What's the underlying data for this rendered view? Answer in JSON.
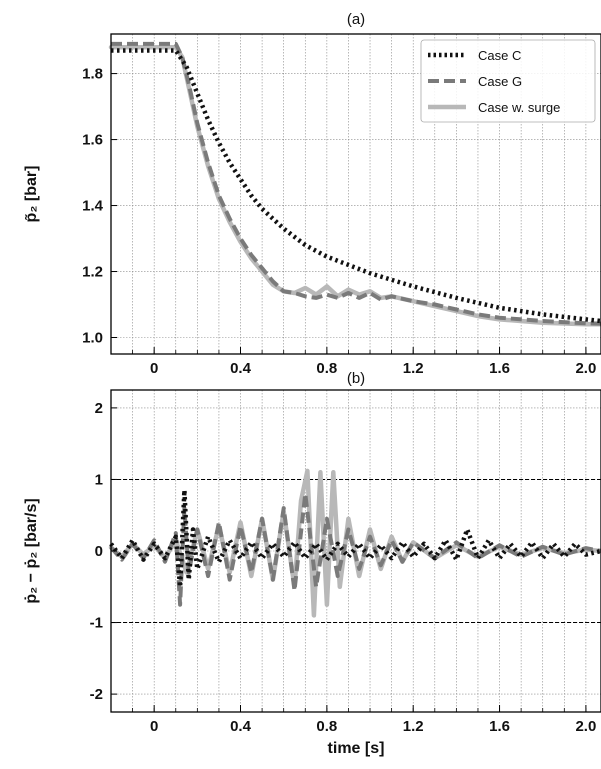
{
  "chart_data": [
    {
      "type": "line",
      "panel_label": "(a)",
      "ylabel": "p̃₂ [bar]",
      "xlim": [
        -0.2,
        2.07
      ],
      "ylim": [
        0.95,
        1.92
      ],
      "x_ticks": [
        0,
        0.4,
        0.8,
        1.2,
        1.6,
        2.0
      ],
      "x_tick_labels": [
        "0",
        "0.4",
        "0.8",
        "1.2",
        "1.6",
        "2.0"
      ],
      "y_ticks": [
        1.0,
        1.2,
        1.4,
        1.6,
        1.8
      ],
      "y_tick_labels": [
        "1.0",
        "1.2",
        "1.4",
        "1.6",
        "1.8"
      ],
      "x_grid_step": 0.1,
      "grid": true,
      "legend_position": "top-right",
      "series": [
        {
          "name": "Case C",
          "color": "#111111",
          "style": "dotted",
          "x": [
            -0.2,
            0.1,
            0.15,
            0.2,
            0.25,
            0.3,
            0.35,
            0.4,
            0.45,
            0.5,
            0.6,
            0.7,
            0.8,
            0.9,
            1.0,
            1.2,
            1.4,
            1.6,
            1.8,
            2.0,
            2.07
          ],
          "y": [
            1.87,
            1.87,
            1.82,
            1.74,
            1.66,
            1.59,
            1.53,
            1.48,
            1.43,
            1.39,
            1.33,
            1.28,
            1.245,
            1.22,
            1.195,
            1.155,
            1.12,
            1.09,
            1.07,
            1.055,
            1.05
          ]
        },
        {
          "name": "Case G",
          "color": "#7a7a7a",
          "style": "dashed",
          "x": [
            -0.2,
            0.1,
            0.13,
            0.16,
            0.2,
            0.25,
            0.3,
            0.35,
            0.4,
            0.45,
            0.5,
            0.55,
            0.6,
            0.65,
            0.7,
            0.75,
            0.8,
            0.85,
            0.9,
            0.95,
            1.0,
            1.05,
            1.1,
            1.2,
            1.3,
            1.4,
            1.5,
            1.6,
            1.8,
            2.0,
            2.07
          ],
          "y": [
            1.89,
            1.89,
            1.85,
            1.77,
            1.65,
            1.53,
            1.43,
            1.36,
            1.3,
            1.25,
            1.21,
            1.17,
            1.14,
            1.135,
            1.125,
            1.12,
            1.13,
            1.12,
            1.135,
            1.12,
            1.135,
            1.115,
            1.125,
            1.11,
            1.1,
            1.085,
            1.07,
            1.06,
            1.05,
            1.043,
            1.042
          ]
        },
        {
          "name": "Case w. surge",
          "color": "#b8b8b8",
          "style": "solid",
          "x": [
            -0.2,
            0.1,
            0.13,
            0.16,
            0.2,
            0.25,
            0.3,
            0.35,
            0.4,
            0.45,
            0.5,
            0.55,
            0.6,
            0.65,
            0.7,
            0.75,
            0.8,
            0.85,
            0.9,
            0.95,
            1.0,
            1.05,
            1.1,
            1.2,
            1.3,
            1.4,
            1.5,
            1.6,
            1.8,
            2.0,
            2.07
          ],
          "y": [
            1.88,
            1.88,
            1.85,
            1.76,
            1.64,
            1.52,
            1.42,
            1.35,
            1.29,
            1.24,
            1.2,
            1.16,
            1.14,
            1.135,
            1.15,
            1.13,
            1.155,
            1.125,
            1.145,
            1.13,
            1.14,
            1.12,
            1.125,
            1.11,
            1.095,
            1.08,
            1.065,
            1.055,
            1.045,
            1.04,
            1.04
          ]
        }
      ]
    },
    {
      "type": "line",
      "panel_label": "(b)",
      "xlabel": "time [s]",
      "ylabel": "ṗ₂ − ṗ₂ [bar/s]",
      "xlim": [
        -0.2,
        2.07
      ],
      "ylim": [
        -2.25,
        2.25
      ],
      "x_ticks": [
        0,
        0.4,
        0.8,
        1.2,
        1.6,
        2.0
      ],
      "x_tick_labels": [
        "0",
        "0.4",
        "0.8",
        "1.2",
        "1.6",
        "2.0"
      ],
      "y_ticks": [
        -2,
        -1,
        0,
        1,
        2
      ],
      "y_tick_labels": [
        "-2",
        "-1",
        "0",
        "1",
        "2"
      ],
      "x_grid_step": 0.1,
      "grid": true,
      "reference_lines_y": [
        1,
        -1
      ],
      "series": [
        {
          "name": "Case C",
          "color": "#111111",
          "style": "dotted",
          "x": [
            -0.2,
            -0.15,
            -0.1,
            -0.05,
            0,
            0.05,
            0.1,
            0.12,
            0.14,
            0.16,
            0.18,
            0.2,
            0.25,
            0.3,
            0.35,
            0.4,
            0.45,
            0.5,
            0.55,
            0.6,
            0.65,
            0.7,
            0.75,
            0.8,
            0.85,
            0.9,
            0.95,
            1.0,
            1.05,
            1.1,
            1.15,
            1.2,
            1.25,
            1.3,
            1.35,
            1.4,
            1.45,
            1.5,
            1.55,
            1.6,
            1.65,
            1.7,
            1.75,
            1.8,
            1.85,
            1.9,
            1.95,
            2.0,
            2.07
          ],
          "y": [
            0.1,
            -0.1,
            0.15,
            -0.12,
            0.1,
            -0.1,
            0.2,
            -0.5,
            0.85,
            -0.4,
            0.3,
            -0.25,
            0.2,
            -0.15,
            0.15,
            -0.1,
            0.12,
            -0.1,
            0.1,
            -0.08,
            0.12,
            -0.1,
            0.1,
            -0.12,
            0.1,
            -0.08,
            0.1,
            -0.1,
            0.08,
            -0.1,
            0.12,
            -0.08,
            0.1,
            -0.1,
            0.15,
            -0.12,
            0.3,
            -0.1,
            0.15,
            -0.1,
            0.1,
            -0.08,
            0.12,
            -0.1,
            0.1,
            -0.08,
            0.1,
            -0.05,
            0.0
          ]
        },
        {
          "name": "Case G",
          "color": "#7a7a7a",
          "style": "dashed",
          "x": [
            -0.2,
            -0.15,
            -0.1,
            -0.05,
            0,
            0.05,
            0.1,
            0.12,
            0.14,
            0.16,
            0.2,
            0.25,
            0.3,
            0.35,
            0.4,
            0.45,
            0.5,
            0.55,
            0.6,
            0.65,
            0.7,
            0.75,
            0.8,
            0.85,
            0.9,
            0.95,
            1.0,
            1.05,
            1.1,
            1.15,
            1.2,
            1.3,
            1.4,
            1.5,
            1.6,
            1.7,
            1.8,
            1.9,
            2.0,
            2.07
          ],
          "y": [
            0.05,
            -0.12,
            0.1,
            -0.1,
            0.15,
            -0.15,
            0.25,
            -0.75,
            0.6,
            -0.3,
            0.3,
            -0.35,
            0.4,
            -0.4,
            0.35,
            -0.3,
            0.45,
            -0.4,
            0.6,
            -0.55,
            0.8,
            -0.5,
            0.45,
            -0.35,
            0.3,
            -0.25,
            0.2,
            -0.2,
            0.15,
            -0.15,
            0.12,
            -0.1,
            0.12,
            -0.1,
            0.08,
            -0.08,
            0.06,
            -0.05,
            0.04,
            0.0
          ]
        },
        {
          "name": "Case w. surge",
          "color": "#b8b8b8",
          "style": "solid",
          "x": [
            -0.2,
            -0.15,
            -0.1,
            -0.05,
            0,
            0.05,
            0.1,
            0.15,
            0.2,
            0.25,
            0.3,
            0.35,
            0.4,
            0.45,
            0.5,
            0.55,
            0.6,
            0.65,
            0.68,
            0.71,
            0.74,
            0.77,
            0.8,
            0.83,
            0.86,
            0.9,
            0.95,
            1.0,
            1.05,
            1.1,
            1.15,
            1.2,
            1.3,
            1.4,
            1.5,
            1.6,
            1.7,
            1.8,
            1.9,
            2.0,
            2.07
          ],
          "y": [
            0.05,
            -0.08,
            0.1,
            -0.05,
            0.08,
            -0.1,
            0.15,
            -0.3,
            0.3,
            -0.25,
            0.35,
            -0.3,
            0.4,
            -0.35,
            0.45,
            -0.4,
            0.55,
            -0.5,
            0.7,
            1.12,
            -0.9,
            1.1,
            -0.75,
            1.1,
            -0.5,
            0.45,
            -0.35,
            0.3,
            -0.25,
            0.2,
            -0.15,
            0.12,
            -0.1,
            0.08,
            -0.08,
            0.06,
            -0.05,
            0.04,
            -0.03,
            0.02,
            0.0
          ]
        }
      ]
    }
  ]
}
